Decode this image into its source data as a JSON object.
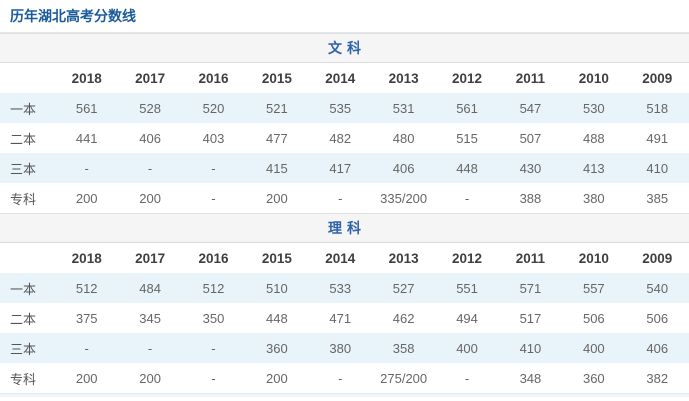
{
  "page": {
    "title": "历年湖北高考分数线"
  },
  "colors": {
    "title_blue": "#1b5a9b",
    "section_blue": "#2e63a8",
    "section_header_bg": "#f5f5f5",
    "stripe_row_bg": "#e9f4fa",
    "data_text": "#666666",
    "header_text": "#3f3f3f",
    "border": "#dcdcdc"
  },
  "chart_data": [
    {
      "type": "table",
      "title": "文科",
      "years": [
        "2018",
        "2017",
        "2016",
        "2015",
        "2014",
        "2013",
        "2012",
        "2011",
        "2010",
        "2009"
      ],
      "rows": [
        {
          "label": "一本",
          "values": [
            "561",
            "528",
            "520",
            "521",
            "535",
            "531",
            "561",
            "547",
            "530",
            "518"
          ]
        },
        {
          "label": "二本",
          "values": [
            "441",
            "406",
            "403",
            "477",
            "482",
            "480",
            "515",
            "507",
            "488",
            "491"
          ]
        },
        {
          "label": "三本",
          "values": [
            "-",
            "-",
            "-",
            "415",
            "417",
            "406",
            "448",
            "430",
            "413",
            "410"
          ]
        },
        {
          "label": "专科",
          "values": [
            "200",
            "200",
            "-",
            "200",
            "-",
            "335/200",
            "-",
            "388",
            "380",
            "385"
          ]
        }
      ]
    },
    {
      "type": "table",
      "title": "理科",
      "years": [
        "2018",
        "2017",
        "2016",
        "2015",
        "2014",
        "2013",
        "2012",
        "2011",
        "2010",
        "2009"
      ],
      "rows": [
        {
          "label": "一本",
          "values": [
            "512",
            "484",
            "512",
            "510",
            "533",
            "527",
            "551",
            "571",
            "557",
            "540"
          ]
        },
        {
          "label": "二本",
          "values": [
            "375",
            "345",
            "350",
            "448",
            "471",
            "462",
            "494",
            "517",
            "506",
            "506"
          ]
        },
        {
          "label": "三本",
          "values": [
            "-",
            "-",
            "-",
            "360",
            "380",
            "358",
            "400",
            "410",
            "400",
            "406"
          ]
        },
        {
          "label": "专科",
          "values": [
            "200",
            "200",
            "-",
            "200",
            "-",
            "275/200",
            "-",
            "348",
            "360",
            "382"
          ]
        }
      ]
    }
  ]
}
